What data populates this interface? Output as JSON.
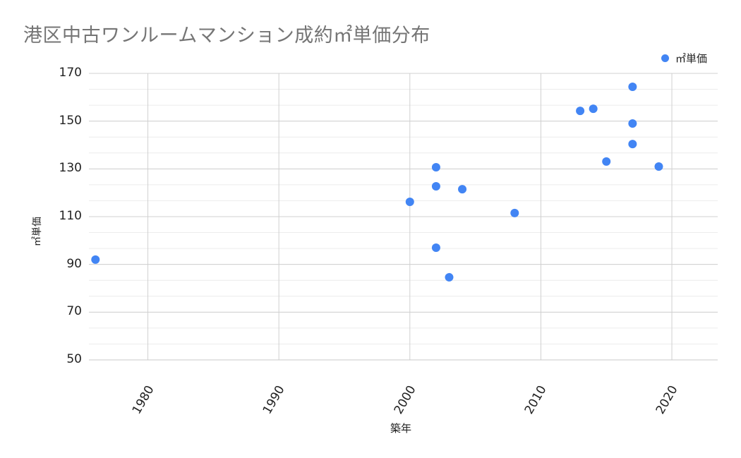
{
  "chart_data": {
    "type": "scatter",
    "title": "港区中古ワンルームマンション成約㎡単価分布",
    "xlabel": "築年",
    "ylabel": "㎡単価",
    "legend": {
      "position": "top-right",
      "entries": [
        "㎡単価"
      ]
    },
    "series": [
      {
        "name": "㎡単価",
        "color": "#4285f4",
        "points": [
          {
            "x": 1976,
            "y": 92
          },
          {
            "x": 2000,
            "y": 116.2
          },
          {
            "x": 2002,
            "y": 130.7
          },
          {
            "x": 2002,
            "y": 122.7
          },
          {
            "x": 2002,
            "y": 97
          },
          {
            "x": 2003,
            "y": 84.6
          },
          {
            "x": 2004,
            "y": 121.5
          },
          {
            "x": 2008,
            "y": 111.5
          },
          {
            "x": 2013,
            "y": 154.3
          },
          {
            "x": 2014,
            "y": 155.2
          },
          {
            "x": 2015,
            "y": 133.1
          },
          {
            "x": 2017,
            "y": 164.4
          },
          {
            "x": 2017,
            "y": 149
          },
          {
            "x": 2017,
            "y": 140.4
          },
          {
            "x": 2019,
            "y": 131
          }
        ]
      }
    ],
    "xlim": [
      1975.5,
      2023.5
    ],
    "ylim": [
      50,
      170
    ],
    "xticks": [
      1980,
      1990,
      2000,
      2010,
      2020
    ],
    "yticks": [
      50,
      70,
      90,
      110,
      130,
      150,
      170
    ],
    "grid": true
  }
}
